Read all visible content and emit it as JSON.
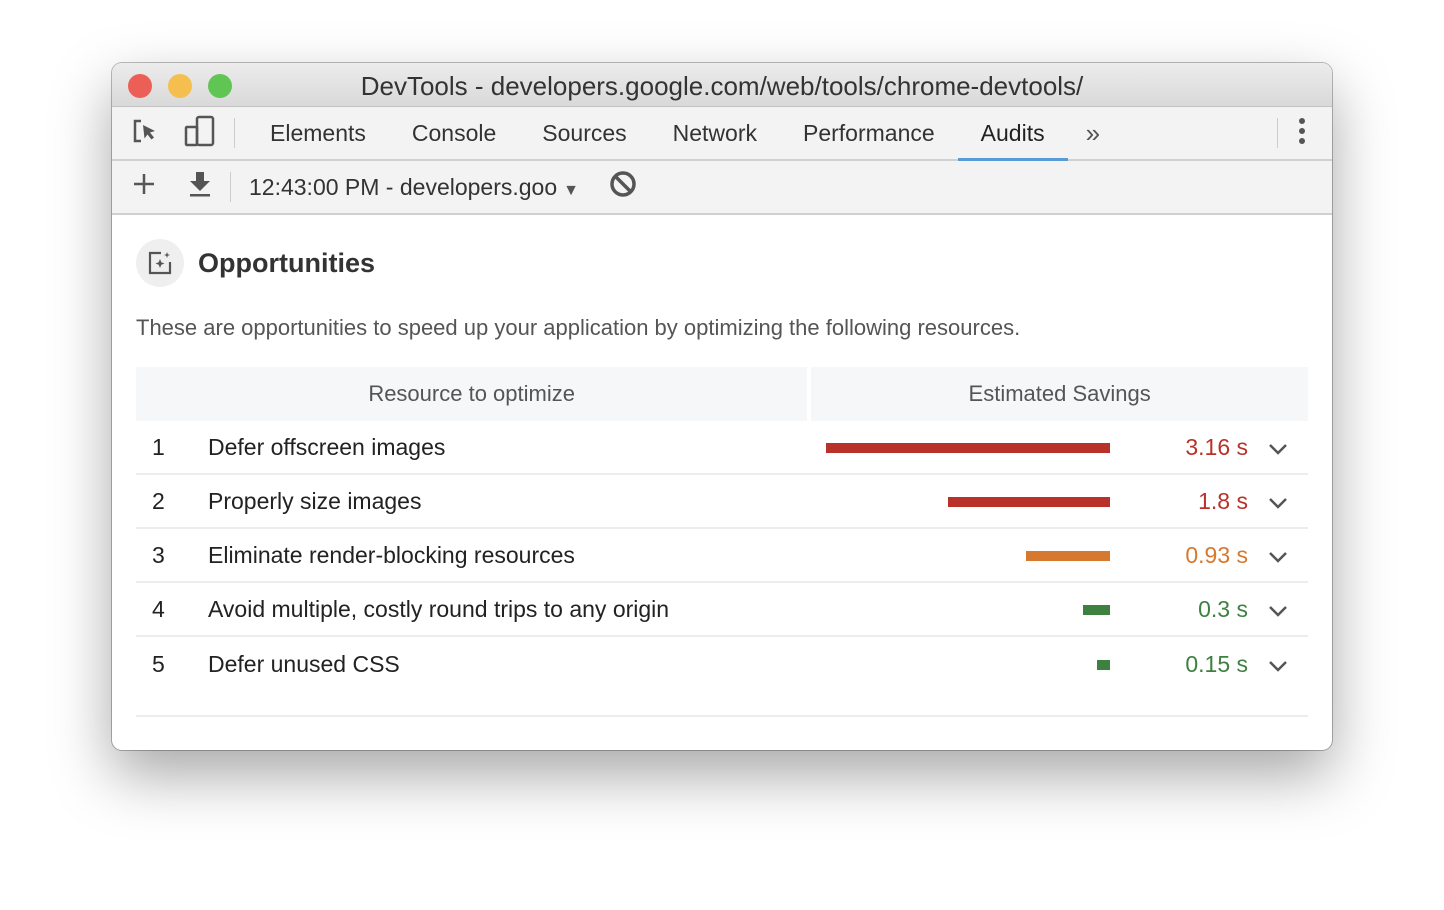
{
  "window": {
    "title": "DevTools - developers.google.com/web/tools/chrome-devtools/"
  },
  "tabs": [
    {
      "label": "Elements"
    },
    {
      "label": "Console"
    },
    {
      "label": "Sources"
    },
    {
      "label": "Network"
    },
    {
      "label": "Performance"
    },
    {
      "label": "Audits",
      "active": true
    }
  ],
  "toolbar": {
    "report_select": "12:43:00 PM - developers.goo"
  },
  "section": {
    "title": "Opportunities",
    "description": "These are opportunities to speed up your application by optimizing the following resources.",
    "col_resource": "Resource to optimize",
    "col_savings": "Estimated Savings"
  },
  "rows": [
    {
      "index": "1",
      "label": "Defer offscreen images",
      "savings": "3.16 s",
      "seconds": 3.16,
      "color": "#b93229"
    },
    {
      "index": "2",
      "label": "Properly size images",
      "savings": "1.8 s",
      "seconds": 1.8,
      "color": "#b93229"
    },
    {
      "index": "3",
      "label": "Eliminate render-blocking resources",
      "savings": "0.93 s",
      "seconds": 0.93,
      "color": "#d7782f"
    },
    {
      "index": "4",
      "label": "Avoid multiple, costly round trips to any origin",
      "savings": "0.3 s",
      "seconds": 0.3,
      "color": "#3e8040"
    },
    {
      "index": "5",
      "label": "Defer unused CSS",
      "savings": "0.15 s",
      "seconds": 0.15,
      "color": "#3e8040"
    }
  ]
}
